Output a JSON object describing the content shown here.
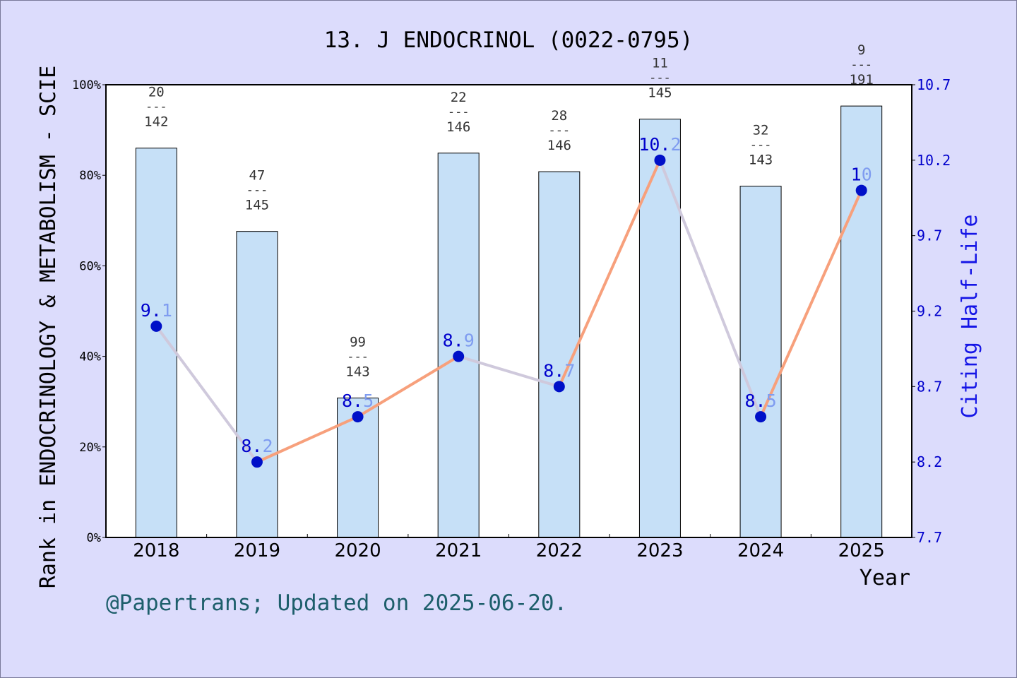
{
  "colors": {
    "background": "#dcdcfc",
    "plot_background": "#ffffff",
    "bar_fill": "#c6e0f7",
    "line_rising": "#f7a07c",
    "line_falling": "#cfc9dc",
    "marker": "#0010c8",
    "value_label_main": "#0000cc",
    "value_label_decimal": "#7f9cf0",
    "right_axis": "#0000cc",
    "footer": "#1d5e6b"
  },
  "footer": "@Papertrans; Updated on 2025-06-20.",
  "chart_data": {
    "type": "bar",
    "title": "13. J ENDOCRINOL (0022-0795)",
    "xlabel": "Year",
    "ylabel": "Rank in ENDOCRINOLOGY & METABOLISM - SCIE",
    "y2label": "Citing Half-Life",
    "categories": [
      "2018",
      "2019",
      "2020",
      "2021",
      "2022",
      "2023",
      "2024",
      "2025"
    ],
    "ylim": [
      0,
      100
    ],
    "yticks": [
      "0%",
      "20%",
      "40%",
      "60%",
      "80%",
      "100%"
    ],
    "y2lim": [
      7.7,
      10.7
    ],
    "y2ticks": [
      "7.7",
      "8.2",
      "8.7",
      "9.2",
      "9.7",
      "10.2",
      "10.7"
    ],
    "grid": false,
    "series": [
      {
        "kind": "bar",
        "values": [
          86,
          67.6,
          30.8,
          84.9,
          80.8,
          92.4,
          77.6,
          95.3
        ],
        "rank": [
          "20",
          "47",
          "99",
          "22",
          "28",
          "11",
          "32",
          "9"
        ],
        "total": [
          "142",
          "145",
          "143",
          "146",
          "146",
          "145",
          "143",
          "191"
        ],
        "separator": "---"
      },
      {
        "kind": "line",
        "axis": "right",
        "values": [
          9.1,
          8.2,
          8.5,
          8.9,
          8.7,
          10.2,
          8.5,
          10
        ],
        "labels": [
          [
            "9.",
            "1"
          ],
          [
            "8.",
            "2"
          ],
          [
            "8.",
            "5"
          ],
          [
            "8.",
            "9"
          ],
          [
            "8.",
            "7"
          ],
          [
            "10.",
            "2"
          ],
          [
            "8.",
            "5"
          ],
          [
            "1",
            "0"
          ]
        ]
      }
    ]
  }
}
